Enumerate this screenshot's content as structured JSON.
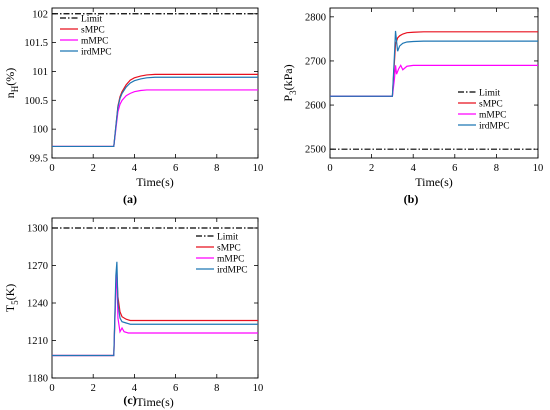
{
  "chart_data": [
    {
      "type": "line",
      "panel_label": "(a)",
      "xlabel": "Time(s)",
      "ylabel": "n_H(%)",
      "ylabel_main": "n",
      "ylabel_sub": "H",
      "ylabel_tail": "(%)",
      "xlim": [
        0,
        10
      ],
      "ylim": [
        99.5,
        102.1
      ],
      "xticks": [
        "0",
        "2",
        "4",
        "6",
        "8",
        "10"
      ],
      "yticks": [
        "99.5",
        "100",
        "100.5",
        "101",
        "101.5",
        "102"
      ],
      "legend_position": "top-left",
      "series": [
        {
          "name": "Limit",
          "color": "#000000",
          "dash": "dashdot",
          "x": [
            0,
            10
          ],
          "y": [
            102,
            102
          ]
        },
        {
          "name": "sMPC",
          "color": "#e8101f",
          "dash": "solid",
          "x": [
            0,
            3.0,
            3.1,
            3.2,
            3.3,
            3.4,
            3.6,
            3.8,
            4.0,
            4.3,
            4.6,
            5.0,
            6,
            8,
            10
          ],
          "y": [
            99.7,
            99.7,
            100.05,
            100.4,
            100.56,
            100.65,
            100.77,
            100.85,
            100.89,
            100.92,
            100.94,
            100.95,
            100.95,
            100.95,
            100.95
          ]
        },
        {
          "name": "mMPC",
          "color": "#ff00ff",
          "dash": "solid",
          "x": [
            0,
            3.0,
            3.1,
            3.2,
            3.3,
            3.4,
            3.6,
            3.8,
            4.0,
            4.3,
            4.6,
            5.0,
            6,
            8,
            10
          ],
          "y": [
            99.7,
            99.7,
            100.0,
            100.3,
            100.43,
            100.5,
            100.58,
            100.62,
            100.65,
            100.67,
            100.68,
            100.68,
            100.68,
            100.68,
            100.68
          ]
        },
        {
          "name": "irdMPC",
          "color": "#1f77b4",
          "dash": "solid",
          "x": [
            0,
            3.0,
            3.1,
            3.2,
            3.3,
            3.4,
            3.6,
            3.8,
            4.0,
            4.3,
            4.6,
            5.0,
            6,
            8,
            10
          ],
          "y": [
            99.7,
            99.7,
            100.05,
            100.38,
            100.53,
            100.62,
            100.73,
            100.8,
            100.84,
            100.87,
            100.89,
            100.9,
            100.9,
            100.9,
            100.9
          ]
        }
      ]
    },
    {
      "type": "line",
      "panel_label": "(b)",
      "xlabel": "Time(s)",
      "ylabel": "P_3(kPa)",
      "ylabel_main": "P",
      "ylabel_sub": "3",
      "ylabel_tail": "(kPa)",
      "xlim": [
        0,
        10
      ],
      "ylim": [
        2480,
        2820
      ],
      "xticks": [
        "0",
        "2",
        "4",
        "6",
        "8",
        "10"
      ],
      "yticks": [
        "2500",
        "2600",
        "2700",
        "2800"
      ],
      "legend_position": "center-right",
      "series": [
        {
          "name": "Limit",
          "color": "#000000",
          "dash": "dashdot",
          "x": [
            0,
            10
          ],
          "y": [
            2500,
            2500
          ]
        },
        {
          "name": "sMPC",
          "color": "#e8101f",
          "dash": "solid",
          "x": [
            0,
            3.0,
            3.1,
            3.15,
            3.25,
            3.35,
            3.5,
            3.7,
            4.0,
            4.5,
            5,
            6,
            8,
            10
          ],
          "y": [
            2620,
            2620,
            2700,
            2738,
            2752,
            2757,
            2761,
            2764,
            2765,
            2766,
            2766,
            2766,
            2766,
            2766
          ]
        },
        {
          "name": "mMPC",
          "color": "#ff00ff",
          "dash": "solid",
          "x": [
            0,
            3.0,
            3.1,
            3.15,
            3.2,
            3.3,
            3.4,
            3.5,
            3.7,
            4.0,
            4.5,
            5,
            6,
            8,
            10
          ],
          "y": [
            2620,
            2620,
            2660,
            2690,
            2670,
            2682,
            2690,
            2680,
            2688,
            2690,
            2690,
            2690,
            2690,
            2690,
            2690
          ]
        },
        {
          "name": "irdMPC",
          "color": "#1f77b4",
          "dash": "solid",
          "x": [
            0,
            3.0,
            3.1,
            3.15,
            3.25,
            3.35,
            3.5,
            3.7,
            4.0,
            4.5,
            5,
            6,
            8,
            10
          ],
          "y": [
            2620,
            2620,
            2715,
            2768,
            2722,
            2734,
            2740,
            2743,
            2744,
            2745,
            2745,
            2745,
            2745,
            2745
          ]
        }
      ]
    },
    {
      "type": "line",
      "panel_label": "(c)",
      "xlabel": "Time(s)",
      "ylabel": "T_5(K)",
      "ylabel_main": "T",
      "ylabel_sub": "5",
      "ylabel_tail": "(K)",
      "xlim": [
        0,
        10
      ],
      "ylim": [
        1180,
        1308
      ],
      "xticks": [
        "0",
        "2",
        "4",
        "6",
        "8",
        "10"
      ],
      "yticks": [
        "1180",
        "1210",
        "1240",
        "1270",
        "1300"
      ],
      "legend_position": "top-right",
      "series": [
        {
          "name": "Limit",
          "color": "#000000",
          "dash": "dashdot",
          "x": [
            0,
            10
          ],
          "y": [
            1300,
            1300
          ]
        },
        {
          "name": "sMPC",
          "color": "#e8101f",
          "dash": "solid",
          "x": [
            0,
            3.0,
            3.1,
            3.15,
            3.2,
            3.3,
            3.4,
            3.6,
            3.8,
            4.0,
            4.5,
            5,
            6,
            8,
            10
          ],
          "y": [
            1198,
            1198,
            1255,
            1262,
            1245,
            1233,
            1229,
            1227,
            1226,
            1226,
            1226,
            1226,
            1226,
            1226,
            1226
          ]
        },
        {
          "name": "mMPC",
          "color": "#ff00ff",
          "dash": "solid",
          "x": [
            0,
            3.0,
            3.1,
            3.15,
            3.2,
            3.3,
            3.4,
            3.5,
            3.7,
            4.0,
            4.5,
            5,
            6,
            8,
            10
          ],
          "y": [
            1198,
            1198,
            1250,
            1265,
            1228,
            1217,
            1220,
            1217,
            1216,
            1216,
            1216,
            1216,
            1216,
            1216,
            1216
          ]
        },
        {
          "name": "irdMPC",
          "color": "#1f77b4",
          "dash": "solid",
          "x": [
            0,
            3.0,
            3.1,
            3.15,
            3.2,
            3.3,
            3.4,
            3.6,
            3.8,
            4.0,
            4.5,
            5,
            6,
            8,
            10
          ],
          "y": [
            1198,
            1198,
            1262,
            1273,
            1240,
            1228,
            1225,
            1224,
            1223,
            1223,
            1223,
            1223,
            1223,
            1223,
            1223
          ]
        }
      ]
    }
  ]
}
